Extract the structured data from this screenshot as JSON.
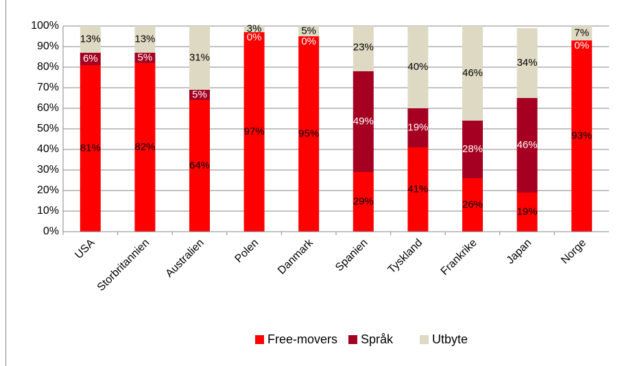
{
  "chart_data": {
    "type": "stacked_bar",
    "categories": [
      "USA",
      "Storbritannien",
      "Australien",
      "Polen",
      "Danmark",
      "Spanien",
      "Tyskland",
      "Frankrike",
      "Japan",
      "Norge"
    ],
    "series": [
      {
        "name": "Free-movers",
        "color": "#ff0000",
        "values": [
          81,
          82,
          64,
          97,
          95,
          29,
          41,
          26,
          19,
          93
        ],
        "value_labels": [
          "81%",
          "82%",
          "64%",
          "97%",
          "95%",
          "29%",
          "41%",
          "26%",
          "19%",
          "93%"
        ]
      },
      {
        "name": "Språk",
        "color": "#a50021",
        "values": [
          6,
          5,
          5,
          0,
          0,
          49,
          19,
          28,
          46,
          0
        ],
        "value_labels": [
          "6%",
          "5%",
          "5%",
          "0%",
          "0%",
          "49%",
          "19%",
          "28%",
          "46%",
          "0%"
        ]
      },
      {
        "name": "Utbyte",
        "color": "#ddd9c3",
        "values": [
          13,
          13,
          31,
          3,
          5,
          23,
          40,
          46,
          34,
          7
        ],
        "value_labels": [
          "13%",
          "13%",
          "31%",
          "3%",
          "5%",
          "23%",
          "40%",
          "46%",
          "34%",
          "7%"
        ]
      }
    ],
    "ylim": [
      0,
      100
    ],
    "yticks": [
      {
        "value": 0,
        "label": "0%"
      },
      {
        "value": 10,
        "label": "10%"
      },
      {
        "value": 20,
        "label": "20%"
      },
      {
        "value": 30,
        "label": "30%"
      },
      {
        "value": 40,
        "label": "40%"
      },
      {
        "value": 50,
        "label": "50%"
      },
      {
        "value": 60,
        "label": "60%"
      },
      {
        "value": 70,
        "label": "70%"
      },
      {
        "value": 80,
        "label": "80%"
      },
      {
        "value": 90,
        "label": "90%"
      },
      {
        "value": 100,
        "label": "100%"
      }
    ],
    "grid": true,
    "legend": "bottom"
  }
}
